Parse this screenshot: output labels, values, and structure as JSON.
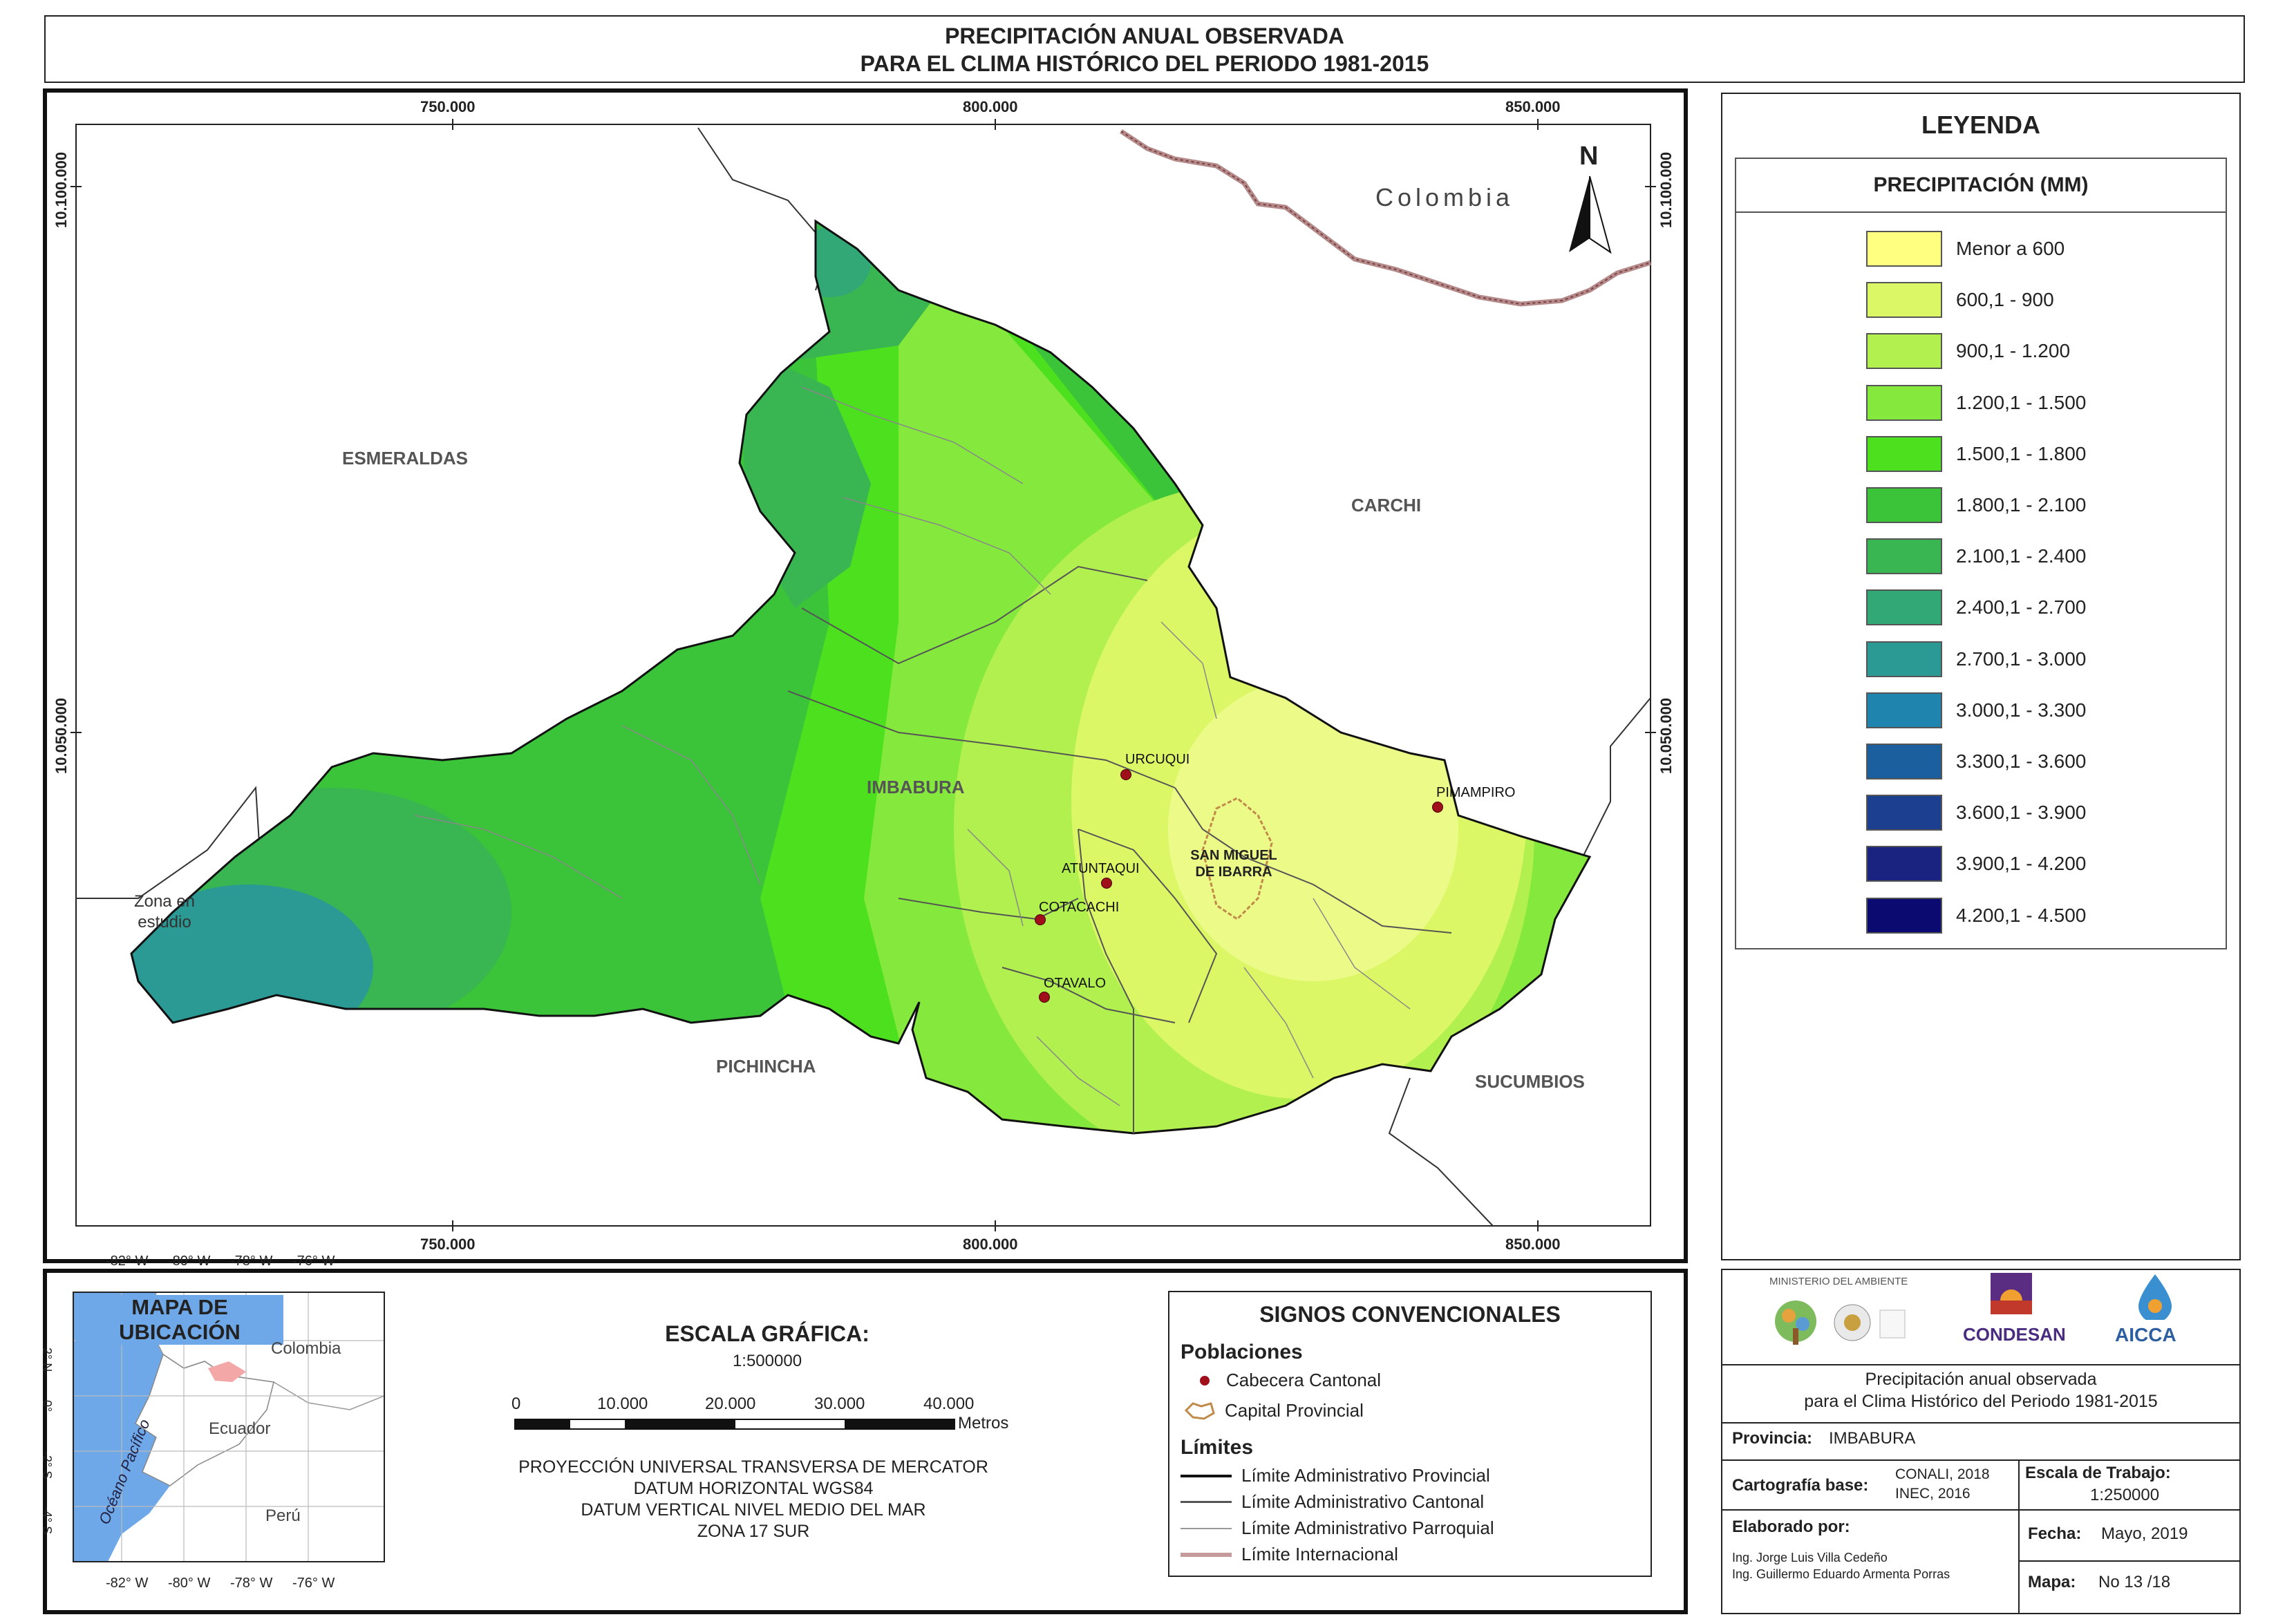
{
  "title": {
    "line1": "PRECIPITACIÓN ANUAL OBSERVADA",
    "line2": "PARA EL CLIMA HISTÓRICO DEL PERIODO 1981-2015"
  },
  "map": {
    "x_ticks": [
      "750.000",
      "800.000",
      "850.000"
    ],
    "y_ticks": [
      "10.100.000",
      "10.050.000"
    ],
    "north_label": "N",
    "country_label": "Colombia",
    "provinces": {
      "esmeraldas": "ESMERALDAS",
      "carchi": "CARCHI",
      "imbabura": "IMBABURA",
      "pichincha": "PICHINCHA",
      "sucumbios": "SUCUMBIOS"
    },
    "zona_label": "Zona en estudio",
    "towns": {
      "urcuqui": "URCUQUI",
      "pimampiro": "PIMAMPIRO",
      "atuntaqui": "ATUNTAQUI",
      "cotacachi": "COTACACHI",
      "otavalo": "OTAVALO",
      "ibarra_line1": "SAN MIGUEL",
      "ibarra_line2": "DE IBARRA"
    }
  },
  "legend": {
    "title": "LEYENDA",
    "subtitle": "PRECIPITACIÓN (MM)",
    "classes": [
      {
        "label": "Menor a 600",
        "color": "#ffff80"
      },
      {
        "label": "600,1 - 900",
        "color": "#dcf766"
      },
      {
        "label": "900,1 - 1.200",
        "color": "#b2f04f"
      },
      {
        "label": "1.200,1 - 1.500",
        "color": "#85e83d"
      },
      {
        "label": "1.500,1 - 1.800",
        "color": "#4ce01f"
      },
      {
        "label": "1.800,1 - 2.100",
        "color": "#3bc43a"
      },
      {
        "label": "2.100,1 - 2.400",
        "color": "#39b551"
      },
      {
        "label": "2.400,1 - 2.700",
        "color": "#33a877"
      },
      {
        "label": "2.700,1 - 3.000",
        "color": "#2b9a95"
      },
      {
        "label": "3.000,1 - 3.300",
        "color": "#1f85ae"
      },
      {
        "label": "3.300,1 - 3.600",
        "color": "#1c5f9f"
      },
      {
        "label": "3.600,1 - 3.900",
        "color": "#1c3f8f"
      },
      {
        "label": "3.900,1 - 4.200",
        "color": "#1a2380"
      },
      {
        "label": "4.200,1 - 4.500",
        "color": "#0a0a70"
      }
    ]
  },
  "location_map": {
    "title": "MAPA DE UBICACIÓN",
    "lon_ticks": [
      "-82° W",
      "-80° W",
      "-78° W",
      "-76° W"
    ],
    "lat_ticks": [
      "2° N",
      "0°",
      "-2° S",
      "-4° S"
    ],
    "labels": {
      "colombia": "Colombia",
      "ecuador": "Ecuador",
      "peru": "Perú",
      "ocean": "Océano Pacífico"
    }
  },
  "scale": {
    "title": "ESCALA GRÁFICA:",
    "ratio": "1:500000",
    "ticks": [
      "0",
      "10.000",
      "20.000",
      "30.000",
      "40.000"
    ],
    "unit": "Metros",
    "projection": [
      "PROYECCIÓN UNIVERSAL TRANSVERSA DE MERCATOR",
      "DATUM HORIZONTAL WGS84",
      "DATUM VERTICAL NIVEL MEDIO DEL MAR",
      "ZONA 17 SUR"
    ]
  },
  "signs": {
    "title": "SIGNOS CONVENCIONALES",
    "poblaciones": "Poblaciones",
    "cabecera": "Cabecera Cantonal",
    "capital": "Capital Provincial",
    "limites": "Límites",
    "lim_prov": "Límite Administrativo Provincial",
    "lim_cant": "Límite Administrativo Cantonal",
    "lim_parr": "Límite Administrativo Parroquial",
    "lim_int": "Límite Internacional"
  },
  "info": {
    "logos": {
      "ministerio": "MINISTERIO DEL AMBIENTE",
      "condesan": "CONDESAN",
      "aicca": "AICCA"
    },
    "desc1": "Precipitación anual observada",
    "desc2": "para el Clima Histórico del Periodo 1981-2015",
    "provincia_label": "Provincia:",
    "provincia": "IMBABURA",
    "carto_label": "Cartografía base:",
    "carto1": "CONALI, 2018",
    "carto2": "INEC, 2016",
    "escala_label": "Escala de Trabajo:",
    "escala": "1:250000",
    "elab_label": "Elaborado por:",
    "autor1": "Ing. Jorge Luis Villa Cedeño",
    "autor2": "Ing. Guillermo Eduardo Armenta Porras",
    "fecha_label": "Fecha:",
    "fecha": "Mayo, 2019",
    "mapa_label": "Mapa:",
    "mapa": "No 13 /18"
  }
}
